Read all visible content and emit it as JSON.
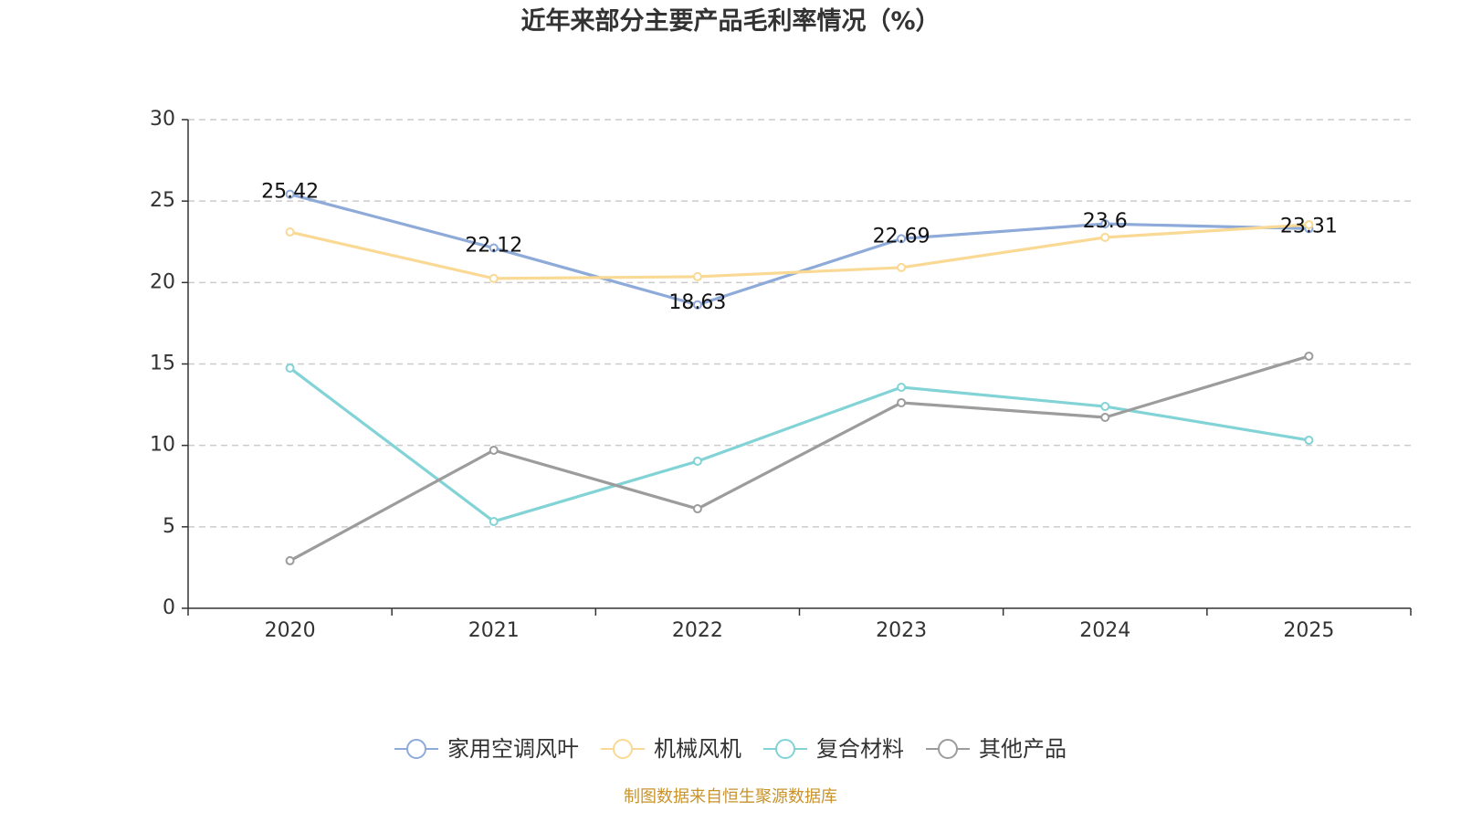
{
  "chart_data": {
    "type": "line",
    "title": "近年来部分主要产品毛利率情况（%）",
    "xlabel": "",
    "ylabel": "",
    "categories": [
      "2020",
      "2021",
      "2022",
      "2023",
      "2024",
      "2025"
    ],
    "ylim": [
      0,
      30
    ],
    "yticks": [
      0,
      5,
      10,
      15,
      20,
      25,
      30
    ],
    "grid": true,
    "legend_position": "bottom",
    "series": [
      {
        "name": "家用空调风叶",
        "color": "#8eaad8",
        "values": [
          25.42,
          22.12,
          18.63,
          22.69,
          23.6,
          23.31
        ],
        "show_labels": true
      },
      {
        "name": "机械风机",
        "color": "#f9d994",
        "values": [
          23.1,
          20.25,
          20.36,
          20.92,
          22.77,
          23.55
        ],
        "show_labels": false
      },
      {
        "name": "复合材料",
        "color": "#82d3d6",
        "values": [
          14.75,
          5.33,
          9.03,
          13.57,
          12.39,
          10.32
        ],
        "show_labels": false
      },
      {
        "name": "其他产品",
        "color": "#9c9c9c",
        "values": [
          2.92,
          9.7,
          6.11,
          12.62,
          11.72,
          15.48
        ],
        "show_labels": false
      }
    ]
  },
  "source": "制图数据来自恒生聚源数据库"
}
